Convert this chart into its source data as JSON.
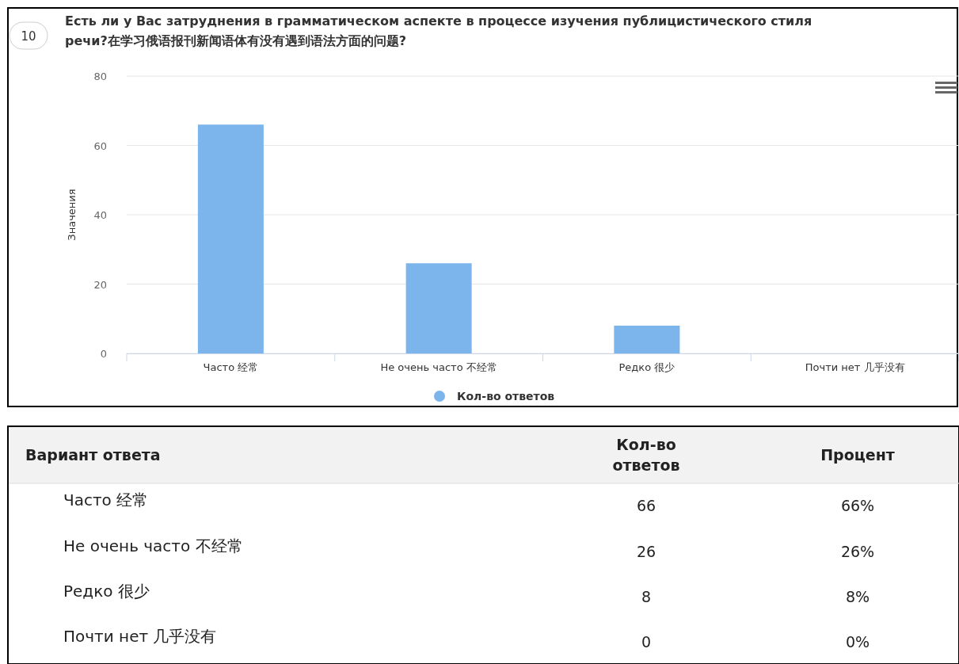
{
  "chart_data": {
    "type": "bar",
    "title": "Есть ли у Вас затруднения в грамматическом аспекте в процессе изучения публицистического стиля речи?在学习俄语报刊新闻语体有没有遇到语法方面的问题?",
    "ylabel": "Значения",
    "categories": [
      "Часто 经常",
      "Не очень часто 不经常",
      "Редко 很少",
      "Почти нет 几乎没有"
    ],
    "series": [
      {
        "name": "Кол-во ответов",
        "color": "#7cb5ec",
        "values": [
          66,
          26,
          8,
          0
        ]
      }
    ],
    "ylim": [
      0,
      80
    ],
    "yticks": [
      0,
      20,
      40,
      60,
      80
    ],
    "grid": "y",
    "legend": "bottom",
    "annotations": [
      "10",
      "Вариант ответа",
      "Кол-во ответов",
      "Процент",
      "66",
      "26",
      "8",
      "0",
      "66%",
      "26%",
      "8%",
      "0%"
    ]
  }
}
